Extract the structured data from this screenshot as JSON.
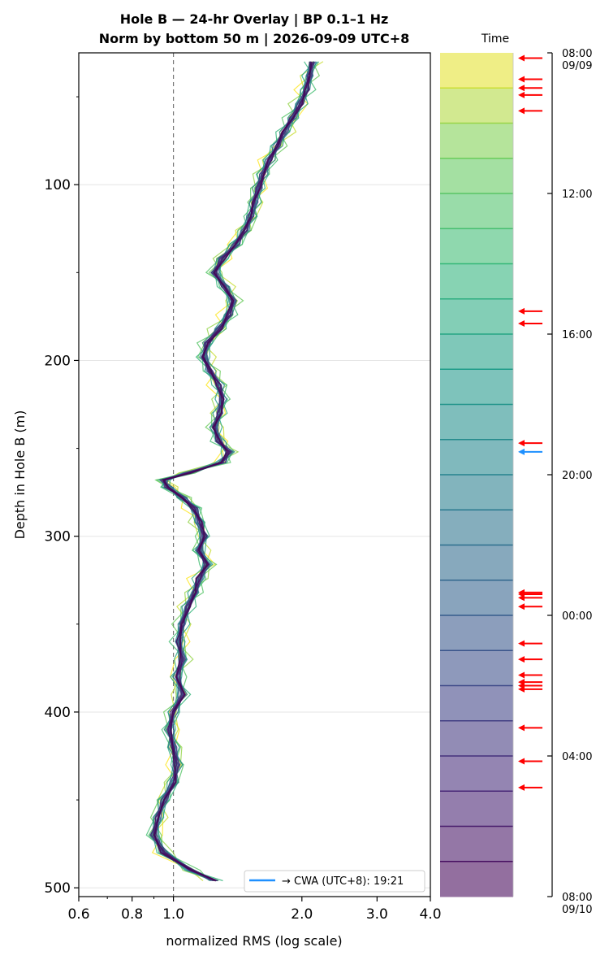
{
  "chart_data": {
    "type": "line",
    "title_line1": "Hole B — 24-hr Overlay  |  BP 0.1–1 Hz",
    "title_line2": "Norm by bottom 50 m  |  2026-09-09 UTC+8",
    "xlabel": "normalized RMS  (log scale)",
    "ylabel": "Depth in Hole B (m)",
    "xscale": "log",
    "xlim": [
      0.6,
      4.0
    ],
    "xticks": [
      0.6,
      0.8,
      1.0,
      2.0,
      3.0,
      4.0
    ],
    "xtick_labels": [
      "0.6",
      "0.8",
      "1.0",
      "2.0",
      "3.0",
      "4.0"
    ],
    "ylim": [
      505,
      25
    ],
    "yticks": [
      100,
      200,
      300,
      400,
      500
    ],
    "ytick_labels": [
      "100",
      "200",
      "300",
      "400",
      "500"
    ],
    "reference_line_x": 1.0,
    "grid": "horizontal",
    "legend": {
      "label": "→ CWA (UTC+8): 19:21",
      "color": "#1e90ff",
      "placement": "bottom-right"
    },
    "profile_depths": [
      30,
      38,
      46,
      54,
      62,
      70,
      78,
      86,
      94,
      102,
      110,
      118,
      126,
      134,
      142,
      150,
      158,
      166,
      174,
      182,
      190,
      198,
      206,
      214,
      222,
      230,
      238,
      246,
      252,
      258,
      264,
      268,
      272,
      278,
      284,
      292,
      300,
      308,
      316,
      324,
      332,
      340,
      350,
      360,
      370,
      380,
      390,
      400,
      410,
      420,
      430,
      440,
      450,
      460,
      470,
      480,
      490,
      496
    ],
    "profile_values": [
      2.12,
      2.08,
      2.05,
      1.98,
      1.9,
      1.82,
      1.75,
      1.68,
      1.62,
      1.58,
      1.55,
      1.52,
      1.47,
      1.4,
      1.3,
      1.25,
      1.32,
      1.38,
      1.35,
      1.28,
      1.2,
      1.18,
      1.22,
      1.28,
      1.3,
      1.28,
      1.25,
      1.28,
      1.35,
      1.3,
      1.08,
      0.95,
      0.97,
      1.05,
      1.12,
      1.15,
      1.18,
      1.15,
      1.2,
      1.15,
      1.12,
      1.08,
      1.05,
      1.03,
      1.05,
      1.02,
      1.05,
      1.0,
      0.98,
      1.0,
      1.02,
      1.0,
      0.95,
      0.92,
      0.9,
      0.95,
      1.1,
      1.25
    ],
    "series_count": 24,
    "series_colormap": "viridis",
    "colorbar": {
      "label": "Time",
      "ticks": [
        "08:00\n09/09",
        "12:00",
        "16:00",
        "20:00",
        "00:00",
        "04:00",
        "08:00\n09/10"
      ],
      "tick_hours": [
        0,
        4,
        8,
        12,
        16,
        20,
        24
      ]
    },
    "event_markers": {
      "red_hours": [
        0.15,
        0.75,
        1.0,
        1.2,
        1.65,
        7.35,
        7.7,
        11.1,
        15.35,
        15.4,
        15.5,
        15.75,
        16.8,
        17.25,
        17.7,
        17.9,
        18.0,
        18.1,
        19.2,
        20.15,
        20.9
      ],
      "blue_hour": 11.35
    }
  },
  "colors": {
    "event_red": "#ff0000",
    "event_blue": "#1e90ff",
    "axis": "#000000",
    "gridline": "#e6e6e6"
  }
}
